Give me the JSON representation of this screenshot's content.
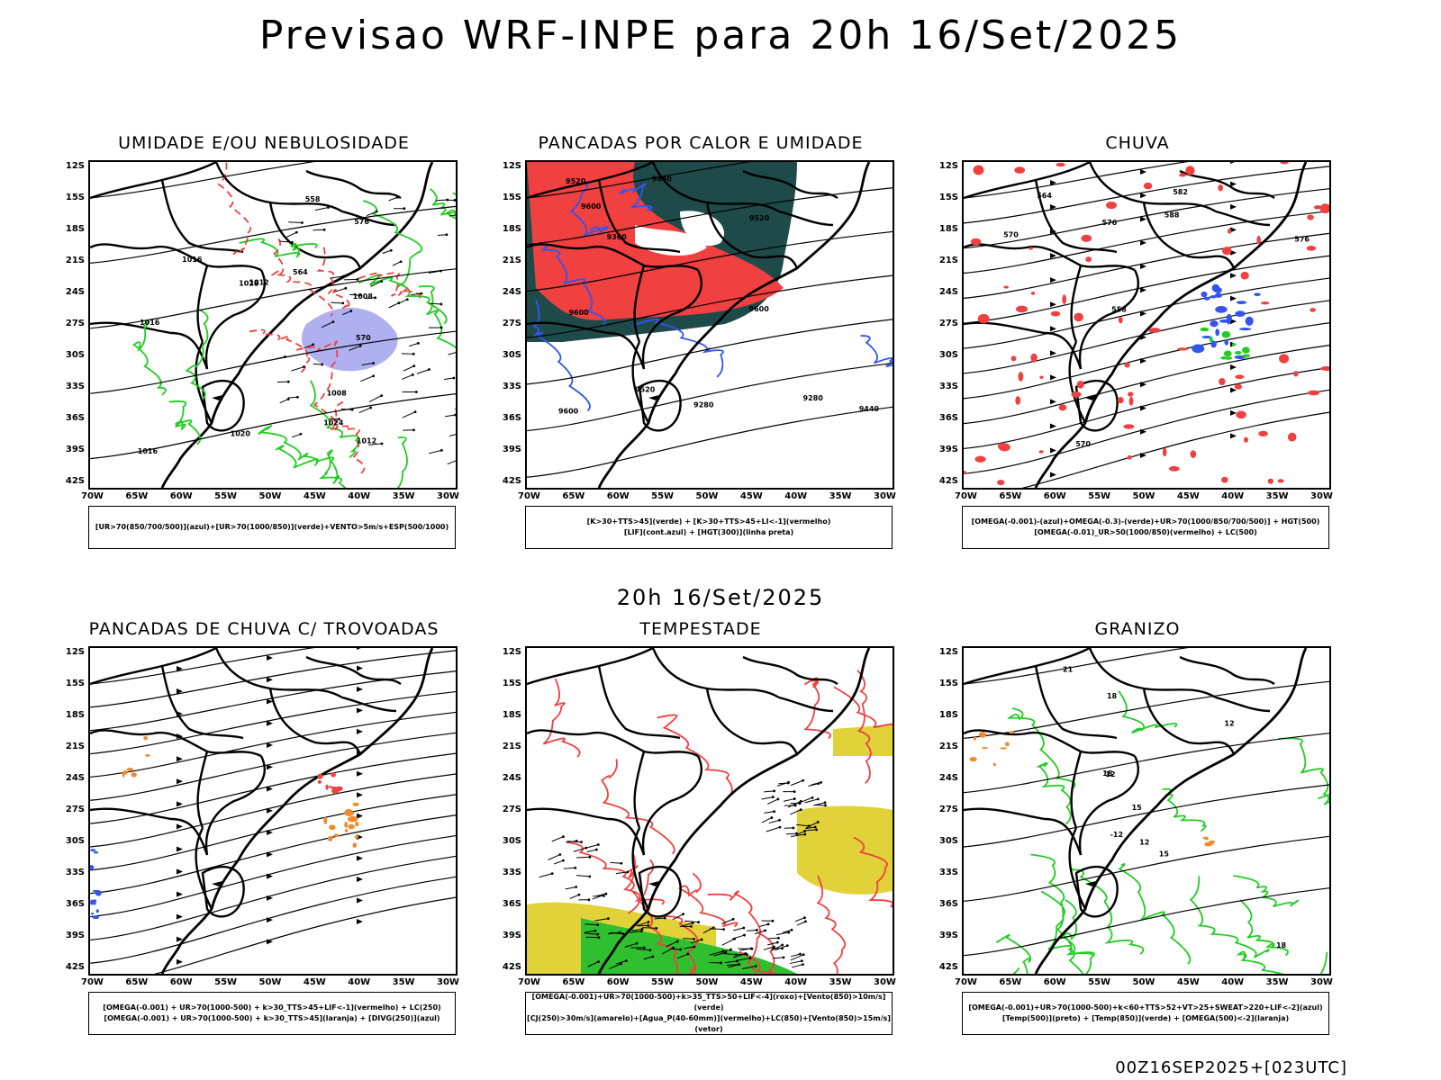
{
  "title": "Previsao WRF-INPE  para 20h 16/Set/2025",
  "subtitle": "20h 16/Set/2025",
  "footer": "00Z16SEP2025+[023UTC]",
  "lat_labels": [
    "12S",
    "15S",
    "18S",
    "21S",
    "24S",
    "27S",
    "30S",
    "33S",
    "36S",
    "39S",
    "42S"
  ],
  "lon_labels": [
    "70W",
    "65W",
    "60W",
    "55W",
    "50W",
    "45W",
    "40W",
    "35W",
    "30W"
  ],
  "colors": {
    "green": "#22cc22",
    "red": "#f04040",
    "blue": "#3355ee",
    "lavender": "#b0b0f0",
    "darkteal": "#1e4a4a",
    "yellow": "#e2d23a",
    "orange": "#f08a2a"
  },
  "panels": [
    {
      "title": "UMIDADE E/OU NEBULOSIDADE",
      "legend": [
        "[UR>70(850/700/500)](azul)+[UR>70(1000/850)](verde)+VENTO>5m/s+ESP(500/1000)"
      ],
      "contour_labels": [
        "1008",
        "1008",
        "1016",
        "1012",
        "1016",
        "1020",
        "1024",
        "1028",
        "576",
        "570",
        "564",
        "558",
        "1012",
        "1016"
      ]
    },
    {
      "title": "PANCADAS POR CALOR E UMIDADE",
      "legend": [
        "[K>30+TTS>45](verde) + [K>30+TTS>45+LI<-1](vermelho)",
        "[LIF](cont.azul) + [HGT(300)](linha preta)"
      ],
      "contour_labels": [
        "9600",
        "9600",
        "9600",
        "9600",
        "9520",
        "9520",
        "9520",
        "9440",
        "9440",
        "9360",
        "9280",
        "9280"
      ]
    },
    {
      "title": "CHUVA",
      "legend": [
        "[OMEGA(-0.001)-(azul)+OMEGA(-0.3)-(verde)+UR>70(1000/850/700/500)] + HGT(500)",
        "[OMEGA(-0.01)_UR>50(1000/850)(vermelho) + LC(500)"
      ],
      "contour_labels": [
        "588",
        "582",
        "576",
        "576",
        "570",
        "570",
        "564",
        "558"
      ]
    },
    {
      "title": "PANCADAS DE CHUVA C/ TROVOADAS",
      "legend": [
        "[OMEGA(-0.001) + UR>70(1000-500) + k>30_TTS>45+LIF<-1](vermelho) + LC(250)",
        "[OMEGA(-0.001) + UR>70(1000-500) + k>30_TTS>45](laranja) + [DIVG(250)](azul)"
      ],
      "contour_labels": []
    },
    {
      "title": "TEMPESTADE",
      "legend": [
        "[OMEGA(-0.001)+UR>70(1000-500)+k>35_TTS>50+LIF<-4](roxo)+[Vento(850)>10m/s](verde)",
        "[CJ(250)>30m/s](amarelo)+[Agua_P(40-60mm)](vermelho)+LC(850)+[Vento(850)>15m/s](vetor)"
      ],
      "contour_labels": []
    },
    {
      "title": "GRANIZO",
      "legend": [
        "[OMEGA(-0.001)+UR>70(1000-500)+k<60+TTS>52+VT>25+SWEAT>220+LIF<-2](azul)",
        "[Temp(500)](preto) + [Temp(850)](verde) + [OMEGA(500)<-2](laranja)"
      ],
      "contour_labels": [
        "12",
        "15",
        "18",
        "21",
        "12",
        "15",
        "18",
        "-12",
        "18",
        "12"
      ]
    }
  ]
}
